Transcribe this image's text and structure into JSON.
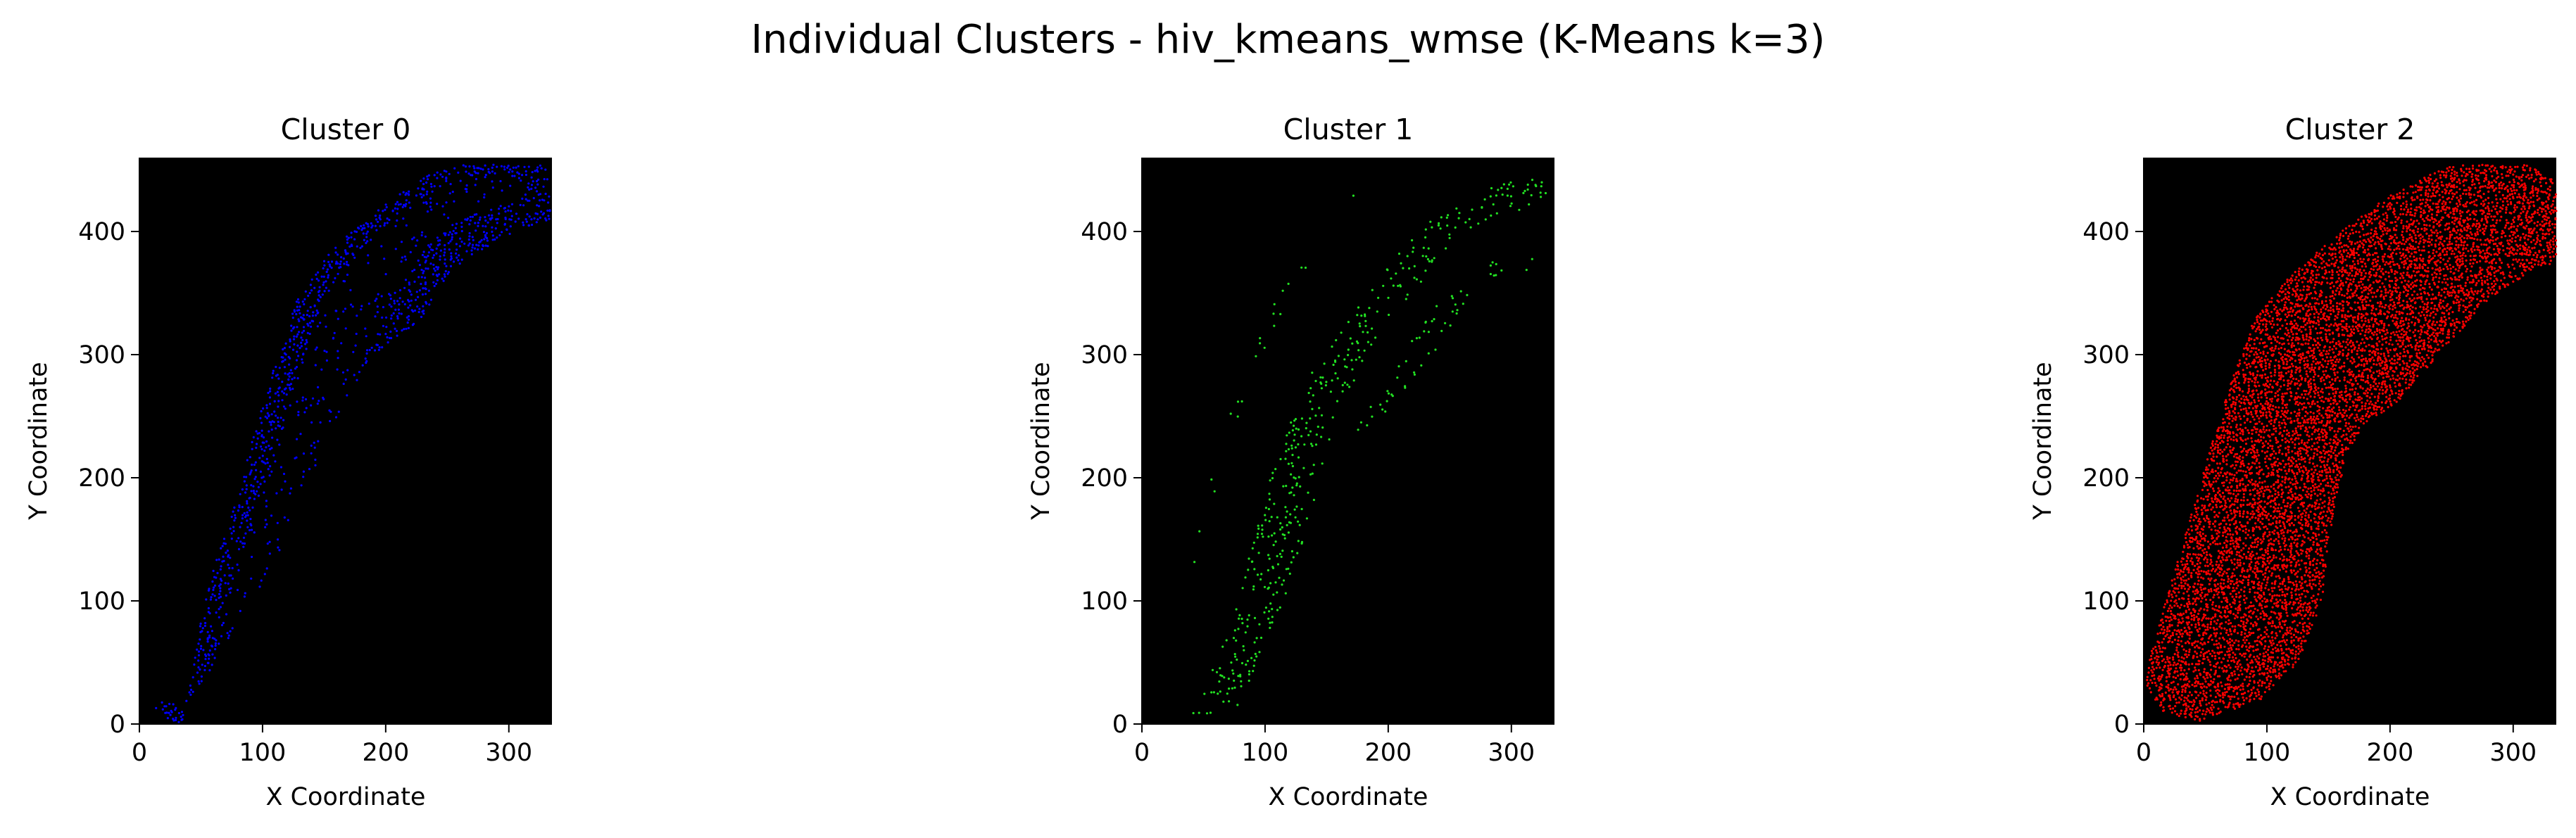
{
  "figure": {
    "suptitle": "Individual Clusters - hiv_kmeans_wmse (K-Means k=3)"
  },
  "chart_data": [
    {
      "type": "scatter",
      "title": "Cluster 0",
      "xlabel": "X Coordinate",
      "ylabel": "Y Coordinate",
      "xlim": [
        0,
        335
      ],
      "ylim": [
        0,
        460
      ],
      "xticks": [
        0,
        100,
        200,
        300
      ],
      "yticks": [
        0,
        100,
        200,
        300,
        400
      ],
      "background": "#000000",
      "point_color": "#0000ff",
      "grid": false,
      "series": [
        {
          "outline": [
            [
              5,
              20
            ],
            [
              20,
              5
            ],
            [
              35,
              0
            ],
            [
              42,
              40
            ],
            [
              55,
              110
            ],
            [
              80,
              190
            ],
            [
              108,
              285
            ],
            [
              128,
              345
            ],
            [
              160,
              390
            ],
            [
              210,
              430
            ],
            [
              250,
              455
            ],
            [
              330,
              455
            ],
            [
              335,
              410
            ],
            [
              305,
              400
            ],
            [
              270,
              380
            ],
            [
              250,
              365
            ],
            [
              230,
              330
            ],
            [
              190,
              300
            ],
            [
              165,
              260
            ],
            [
              145,
              215
            ],
            [
              128,
              175
            ],
            [
              110,
              130
            ],
            [
              85,
              90
            ],
            [
              55,
              40
            ],
            [
              35,
              15
            ]
          ],
          "holes": [
            [
              [
                60,
                70
              ],
              [
                75,
                110
              ],
              [
                100,
                190
              ],
              [
                120,
                250
              ],
              [
                135,
                300
              ],
              [
                150,
                345
              ],
              [
                175,
                380
              ],
              [
                210,
                415
              ],
              [
                250,
                440
              ],
              [
                300,
                445
              ],
              [
                320,
                430
              ],
              [
                290,
                420
              ],
              [
                260,
                410
              ],
              [
                235,
                390
              ],
              [
                215,
                360
              ],
              [
                200,
                330
              ],
              [
                180,
                290
              ],
              [
                160,
                250
              ],
              [
                145,
                210
              ],
              [
                125,
                160
              ],
              [
                100,
                110
              ],
              [
                80,
                80
              ]
            ]
          ],
          "density": 0.32
        }
      ]
    },
    {
      "type": "scatter",
      "title": "Cluster 1",
      "xlabel": "X Coordinate",
      "ylabel": "Y Coordinate",
      "xlim": [
        0,
        335
      ],
      "ylim": [
        0,
        460
      ],
      "xticks": [
        0,
        100,
        200,
        300
      ],
      "yticks": [
        0,
        100,
        200,
        300,
        400
      ],
      "background": "#000000",
      "point_color": "#22e022",
      "grid": false,
      "series": [
        {
          "outline": [
            [
              40,
              5
            ],
            [
              60,
              50
            ],
            [
              78,
              110
            ],
            [
              95,
              170
            ],
            [
              115,
              235
            ],
            [
              140,
              290
            ],
            [
              175,
              340
            ],
            [
              210,
              390
            ],
            [
              250,
              420
            ],
            [
              300,
              445
            ],
            [
              330,
              440
            ],
            [
              330,
              420
            ],
            [
              290,
              415
            ],
            [
              260,
              395
            ],
            [
              240,
              375
            ],
            [
              215,
              345
            ],
            [
              190,
              310
            ],
            [
              165,
              265
            ],
            [
              150,
              220
            ],
            [
              138,
              170
            ],
            [
              120,
              110
            ],
            [
              100,
              60
            ],
            [
              80,
              15
            ]
          ],
          "holes": [],
          "density": 0.11
        },
        {
          "outline": [
            [
              165,
              240
            ],
            [
              190,
              265
            ],
            [
              210,
              300
            ],
            [
              230,
              330
            ],
            [
              255,
              360
            ],
            [
              290,
              380
            ],
            [
              320,
              385
            ],
            [
              320,
              370
            ],
            [
              300,
              365
            ],
            [
              270,
              350
            ],
            [
              250,
              320
            ],
            [
              225,
              285
            ],
            [
              200,
              255
            ],
            [
              175,
              235
            ]
          ],
          "holes": [],
          "density": 0.07
        },
        {
          "outline": [
            [
              5,
              25
            ],
            [
              15,
              45
            ],
            [
              35,
              90
            ],
            [
              55,
              160
            ],
            [
              75,
              235
            ],
            [
              95,
              290
            ],
            [
              118,
              345
            ],
            [
              150,
              395
            ],
            [
              180,
              425
            ],
            [
              172,
              435
            ],
            [
              145,
              405
            ],
            [
              112,
              355
            ],
            [
              88,
              300
            ],
            [
              68,
              240
            ],
            [
              48,
              170
            ],
            [
              28,
              95
            ],
            [
              10,
              40
            ],
            [
              2,
              25
            ]
          ],
          "holes": [],
          "density": 0.03
        }
      ]
    },
    {
      "type": "scatter",
      "title": "Cluster 2",
      "xlabel": "X Coordinate",
      "ylabel": "Y Coordinate",
      "xlim": [
        0,
        335
      ],
      "ylim": [
        0,
        460
      ],
      "xticks": [
        0,
        100,
        200,
        300
      ],
      "yticks": [
        0,
        100,
        200,
        300,
        400
      ],
      "background": "#000000",
      "point_color": "#ff0000",
      "grid": false,
      "series": [
        {
          "outline": [
            [
              2,
              30
            ],
            [
              15,
              10
            ],
            [
              45,
              2
            ],
            [
              95,
              20
            ],
            [
              125,
              50
            ],
            [
              145,
              100
            ],
            [
              150,
              150
            ],
            [
              165,
              220
            ],
            [
              180,
              245
            ],
            [
              205,
              260
            ],
            [
              240,
              300
            ],
            [
              275,
              340
            ],
            [
              310,
              365
            ],
            [
              335,
              375
            ],
            [
              335,
              440
            ],
            [
              310,
              455
            ],
            [
              250,
              455
            ],
            [
              200,
              430
            ],
            [
              160,
              400
            ],
            [
              120,
              365
            ],
            [
              90,
              330
            ],
            [
              70,
              275
            ],
            [
              50,
              210
            ],
            [
              30,
              140
            ],
            [
              15,
              90
            ],
            [
              5,
              55
            ]
          ],
          "holes": [],
          "density": 0.6
        }
      ]
    }
  ]
}
